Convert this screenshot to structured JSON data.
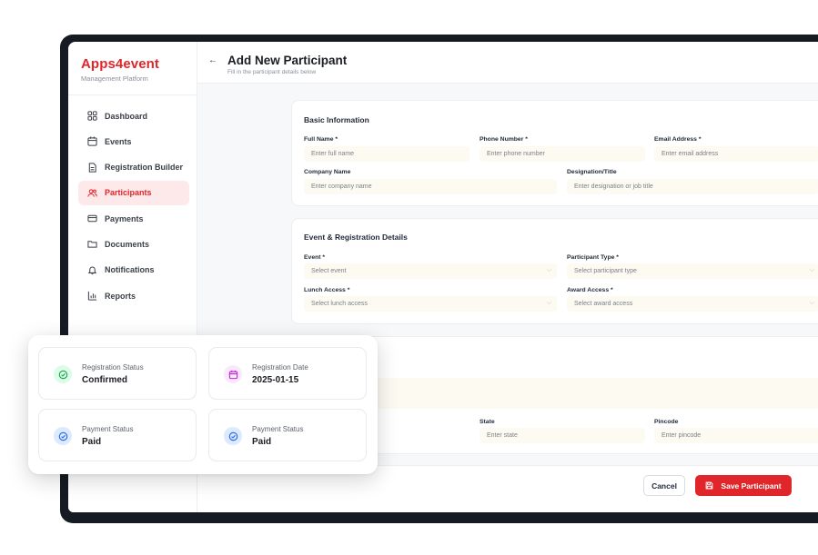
{
  "brand": {
    "name": "Apps4event",
    "subtitle": "Management Platform"
  },
  "sidebar": {
    "items": [
      {
        "label": "Dashboard",
        "icon": "dashboard-icon"
      },
      {
        "label": "Events",
        "icon": "calendar-icon"
      },
      {
        "label": "Registration Builder",
        "icon": "document-icon"
      },
      {
        "label": "Participants",
        "icon": "users-icon",
        "active": true
      },
      {
        "label": "Payments",
        "icon": "card-icon"
      },
      {
        "label": "Documents",
        "icon": "folder-icon"
      },
      {
        "label": "Notifications",
        "icon": "bell-icon"
      },
      {
        "label": "Reports",
        "icon": "chart-icon"
      }
    ]
  },
  "header": {
    "back": "←",
    "title": "Add New Participant",
    "subtitle": "Fill in the participant details below"
  },
  "basic": {
    "title": "Basic Information",
    "full_name": {
      "label": "Full Name *",
      "placeholder": "Enter full name"
    },
    "phone": {
      "label": "Phone Number *",
      "placeholder": "Enter phone number"
    },
    "email": {
      "label": "Email Address *",
      "placeholder": "Enter email address"
    },
    "company": {
      "label": "Company Name",
      "placeholder": "Enter company name"
    },
    "designation": {
      "label": "Designation/Title",
      "placeholder": "Enter designation or job title"
    }
  },
  "event_details": {
    "title": "Event & Registration Details",
    "event": {
      "label": "Event *",
      "placeholder": "Select event"
    },
    "participant_type": {
      "label": "Participant Type *",
      "placeholder": "Select participant type"
    },
    "lunch": {
      "label": "Lunch Access *",
      "placeholder": "Select lunch access"
    },
    "award": {
      "label": "Award Access *",
      "placeholder": "Select award access"
    }
  },
  "address": {
    "state": {
      "label": "State",
      "placeholder": "Enter state"
    },
    "pincode": {
      "label": "Pincode",
      "placeholder": "Enter pincode"
    }
  },
  "actions": {
    "cancel": "Cancel",
    "save": "Save Participant"
  },
  "status_cards": [
    {
      "label": "Registration Status",
      "value": "Confirmed",
      "icon": "check-circle-icon",
      "color": "#16a34a",
      "bg": "#dcfce7"
    },
    {
      "label": "Registration Date",
      "value": "2025-01-15",
      "icon": "calendar-icon",
      "color": "#c026d3",
      "bg": "#fae8ff"
    },
    {
      "label": "Payment Status",
      "value": "Paid",
      "icon": "check-circle-icon",
      "color": "#2563eb",
      "bg": "#dbeafe"
    },
    {
      "label": "Payment Status",
      "value": "Paid",
      "icon": "check-circle-icon",
      "color": "#2563eb",
      "bg": "#dbeafe"
    }
  ],
  "colors": {
    "accent": "#e0262a",
    "active_bg": "#fde9ea",
    "input_bg": "#fdfaf2"
  }
}
